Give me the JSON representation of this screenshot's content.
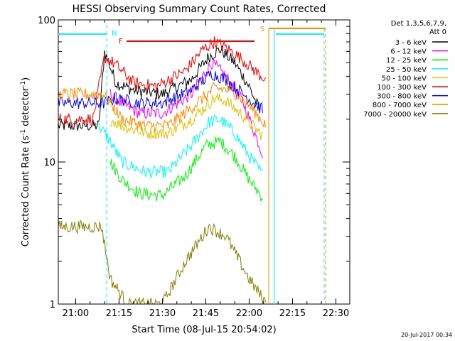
{
  "chart_data": {
    "type": "line",
    "title": "HESSI Observing Summary Count Rates, Corrected",
    "xlabel": "Start Time (08-Jul-15 20:54:02)",
    "ylabel": "Corrected Count Rate (s⁻¹ detector⁻¹)",
    "ylabel_main": "Corrected Count Rate (s",
    "ylabel_sup1": "-1",
    "ylabel_mid": " detector",
    "ylabel_sup2": "-1",
    "ylabel_end": ")",
    "yscale": "log",
    "ylim": [
      1,
      100
    ],
    "xlim_minutes": [
      20.9,
      22.58
    ],
    "xticks": [
      "21:00",
      "21:15",
      "21:30",
      "21:45",
      "22:00",
      "22:15",
      "22:30"
    ],
    "yticks": [
      "1",
      "10",
      "100"
    ],
    "footer_date": "20-Jul-2017 00:34",
    "legend_header": [
      "Det 1,3,5,6,7,9,",
      "Att 0"
    ],
    "series": [
      {
        "name": "3 - 6 keV",
        "color": "#000000",
        "x": [
          "20:54",
          "21:08",
          "21:10",
          "21:14",
          "21:20",
          "21:30",
          "21:40",
          "21:46",
          "21:50",
          "21:55",
          "22:00",
          "22:04"
        ],
        "y": [
          18,
          18,
          60,
          36,
          32,
          30,
          38,
          55,
          62,
          50,
          34,
          22
        ]
      },
      {
        "name": "6 - 12 keV",
        "color": "#ff00ff",
        "x": [
          "21:12",
          "21:16",
          "21:22",
          "21:30",
          "21:40",
          "21:47",
          "21:52",
          "21:58",
          "22:03",
          "22:05"
        ],
        "y": [
          30,
          26,
          22,
          22,
          30,
          50,
          40,
          26,
          14,
          11
        ]
      },
      {
        "name": "12 - 25 keV",
        "color": "#00ff00",
        "x": [
          "21:12",
          "21:16",
          "21:22",
          "21:30",
          "21:38",
          "21:45",
          "21:50",
          "21:55",
          "22:00",
          "22:05"
        ],
        "y": [
          10,
          7.5,
          6,
          5.8,
          8,
          13,
          14,
          11,
          7.5,
          5.5
        ]
      },
      {
        "name": "25 - 50 keV",
        "color": "#00ffff",
        "x": [
          "21:08",
          "21:12",
          "21:16",
          "21:24",
          "21:32",
          "21:40",
          "21:46",
          "21:50",
          "21:55",
          "22:00",
          "22:05"
        ],
        "y": [
          18,
          14,
          10,
          8.5,
          8.5,
          13,
          19,
          20,
          16,
          11,
          8
        ]
      },
      {
        "name": "50 - 100 keV",
        "color": "#e6c000",
        "x": [
          "21:12",
          "21:16",
          "21:24",
          "21:32",
          "21:40",
          "21:48",
          "21:52",
          "21:58",
          "22:05"
        ],
        "y": [
          20,
          18,
          16,
          16,
          20,
          28,
          27,
          21,
          15
        ]
      },
      {
        "name": "100 - 300 keV",
        "color": "#ff0000",
        "x": [
          "20:54",
          "21:06",
          "21:10",
          "21:14",
          "21:20",
          "21:28",
          "21:38",
          "21:44",
          "21:48",
          "21:52",
          "21:58",
          "22:03",
          "22:06"
        ],
        "y": [
          20,
          20,
          55,
          48,
          36,
          34,
          44,
          62,
          70,
          64,
          52,
          42,
          38
        ]
      },
      {
        "name": "300 - 800 keV",
        "color": "#0000ff",
        "x": [
          "20:54",
          "21:10",
          "21:14",
          "21:22",
          "21:30",
          "21:40",
          "21:47",
          "21:52",
          "21:58",
          "22:05"
        ],
        "y": [
          26,
          26,
          28,
          26,
          26,
          32,
          42,
          38,
          30,
          23
        ]
      },
      {
        "name": "800 - 7000 keV",
        "color": "#ff8c00",
        "x": [
          "20:54",
          "21:10",
          "21:16",
          "21:24",
          "21:32",
          "21:40",
          "21:48",
          "21:54",
          "22:00",
          "22:06"
        ],
        "y": [
          30,
          30,
          20,
          18,
          18,
          24,
          33,
          32,
          25,
          18
        ]
      },
      {
        "name": "7000 - 20000 keV",
        "color": "#808000",
        "x": [
          "20:54",
          "21:09",
          "21:12",
          "21:18",
          "21:30",
          "21:38",
          "21:46",
          "21:52",
          "22:00",
          "22:06"
        ],
        "y": [
          3.5,
          3.5,
          1.5,
          1,
          1,
          2,
          3.5,
          3,
          1.5,
          1
        ]
      }
    ],
    "annotations": [
      {
        "text": "N",
        "color": "#00ffff"
      },
      {
        "text": "F",
        "color": "#ff0000"
      },
      {
        "text": "S",
        "color": "#ff8c00"
      }
    ]
  }
}
